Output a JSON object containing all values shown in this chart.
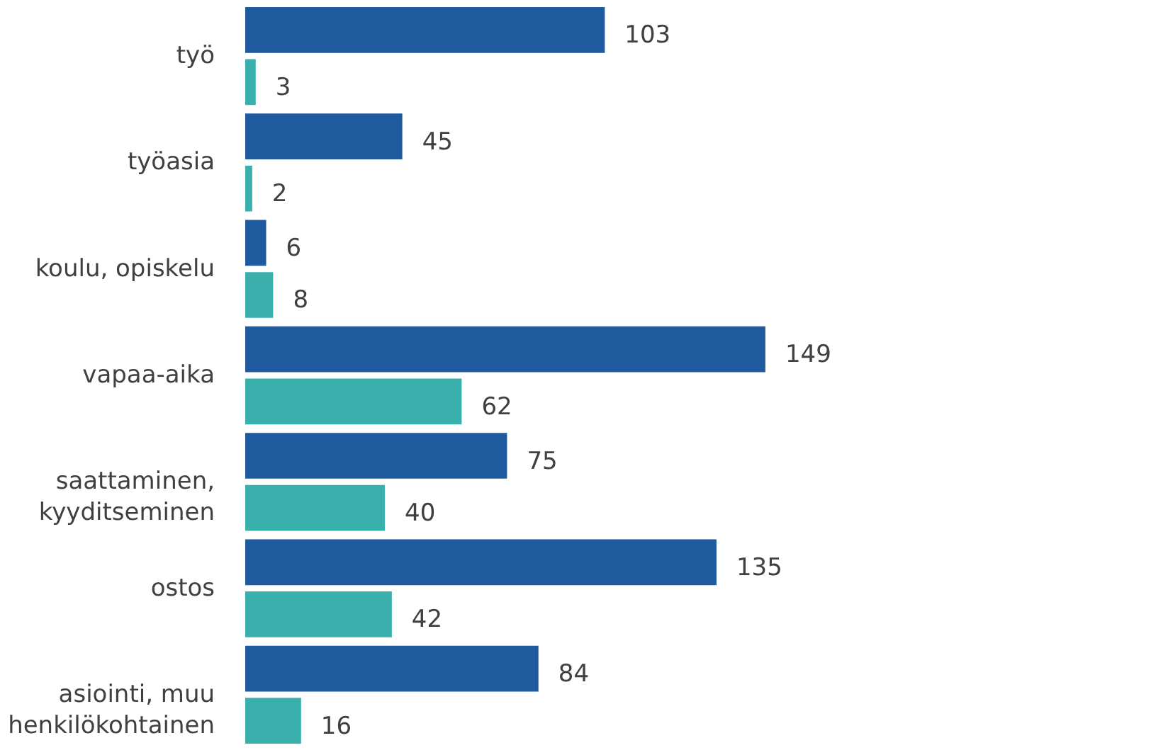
{
  "chart_data": {
    "type": "bar",
    "orientation": "horizontal",
    "data_labels": true,
    "grid": false,
    "tick_labels": "y",
    "categories": [
      "työ",
      "työasia",
      "koulu, opiskelu",
      "vapaa-aika",
      "saattaminen,\nkyyditseminen",
      "ostos",
      "asiointi, muu\nhenkilökohtainen"
    ],
    "series": [
      {
        "color": "#1f5a9e",
        "values": [
          103,
          45,
          6,
          149,
          75,
          135,
          84
        ]
      },
      {
        "color": "#3ab0ac",
        "values": [
          3,
          2,
          8,
          62,
          40,
          42,
          16
        ]
      }
    ]
  }
}
